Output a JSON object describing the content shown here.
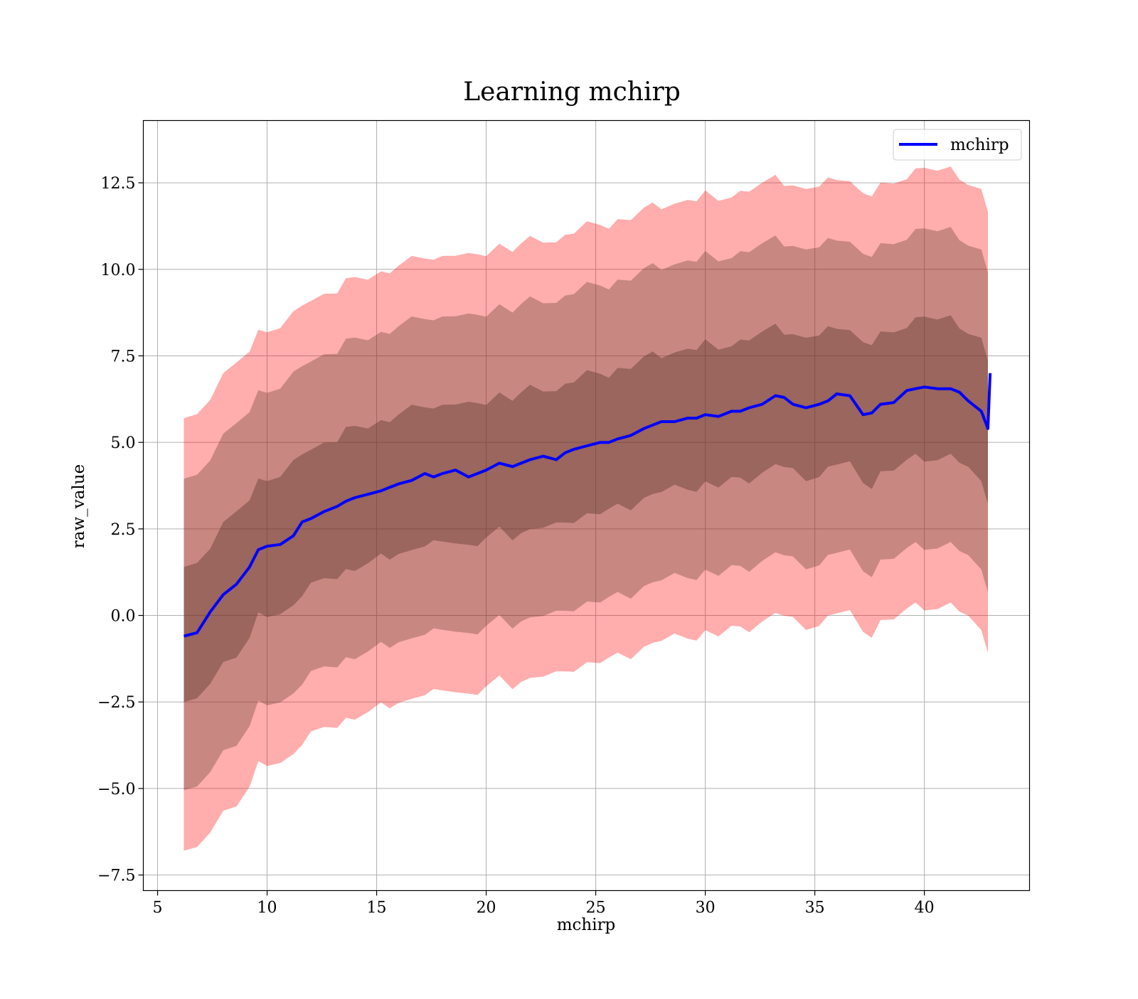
{
  "chart_data": {
    "type": "line",
    "title": "Learning mchirp",
    "xlabel": "mchirp",
    "ylabel": "raw_value",
    "xlim": [
      4.35,
      44.8
    ],
    "ylim": [
      -7.95,
      14.3
    ],
    "xticks": [
      5,
      10,
      15,
      20,
      25,
      30,
      35,
      40
    ],
    "xtick_labels": [
      "5",
      "10",
      "15",
      "20",
      "25",
      "30",
      "35",
      "40"
    ],
    "yticks": [
      -7.5,
      -5.0,
      -2.5,
      0.0,
      2.5,
      5.0,
      7.5,
      10.0,
      12.5
    ],
    "ytick_labels": [
      "−7.5",
      "−5.0",
      "−2.5",
      "0.0",
      "2.5",
      "5.0",
      "7.5",
      "10.0",
      "12.5"
    ],
    "grid": true,
    "legend": {
      "placement": "top-right",
      "entries": [
        "mchirp"
      ]
    },
    "colors": {
      "line": "#0000ff",
      "band": "#ff0000",
      "band_inner_tint": "#5a3a2a",
      "grid": "#b0b0b0"
    },
    "band_half_widths": [
      2.0,
      4.55,
      6.3
    ],
    "series": [
      {
        "name": "mchirp",
        "x": [
          6.2,
          6.8,
          7.4,
          8.0,
          8.6,
          9.2,
          9.6,
          10.0,
          10.6,
          11.2,
          11.6,
          12.0,
          12.6,
          13.2,
          13.6,
          14.0,
          14.6,
          15.2,
          15.6,
          16.0,
          16.6,
          17.2,
          17.6,
          18.0,
          18.6,
          19.2,
          19.6,
          20.0,
          20.6,
          21.2,
          21.6,
          22.0,
          22.6,
          23.2,
          23.6,
          24.0,
          24.6,
          25.2,
          25.6,
          26.0,
          26.6,
          27.2,
          27.6,
          28.0,
          28.6,
          29.2,
          29.6,
          30.0,
          30.6,
          31.2,
          31.6,
          32.0,
          32.6,
          33.2,
          33.6,
          34.0,
          34.6,
          35.2,
          35.6,
          36.0,
          36.6,
          37.2,
          37.6,
          38.0,
          38.6,
          39.2,
          39.6,
          40.0,
          40.6,
          41.2,
          41.6,
          42.0,
          42.6,
          42.9
        ],
        "y": [
          -0.6,
          -0.5,
          0.1,
          0.6,
          0.9,
          1.4,
          1.9,
          2.0,
          2.05,
          2.3,
          2.7,
          2.8,
          3.0,
          3.15,
          3.3,
          3.4,
          3.5,
          3.6,
          3.7,
          3.8,
          3.9,
          4.1,
          4.0,
          4.1,
          4.2,
          4.0,
          4.1,
          4.2,
          4.4,
          4.3,
          4.4,
          4.5,
          4.6,
          4.5,
          4.7,
          4.8,
          4.9,
          5.0,
          5.0,
          5.1,
          5.2,
          5.4,
          5.5,
          5.6,
          5.6,
          5.7,
          5.7,
          5.8,
          5.75,
          5.9,
          5.9,
          6.0,
          6.1,
          6.35,
          6.3,
          6.1,
          6.0,
          6.1,
          6.2,
          6.4,
          6.35,
          5.8,
          5.85,
          6.1,
          6.15,
          6.5,
          6.55,
          6.6,
          6.55,
          6.55,
          6.45,
          6.2,
          5.9,
          5.4
        ]
      }
    ],
    "end_spike": {
      "x": 43.0,
      "y": 7.0
    }
  }
}
